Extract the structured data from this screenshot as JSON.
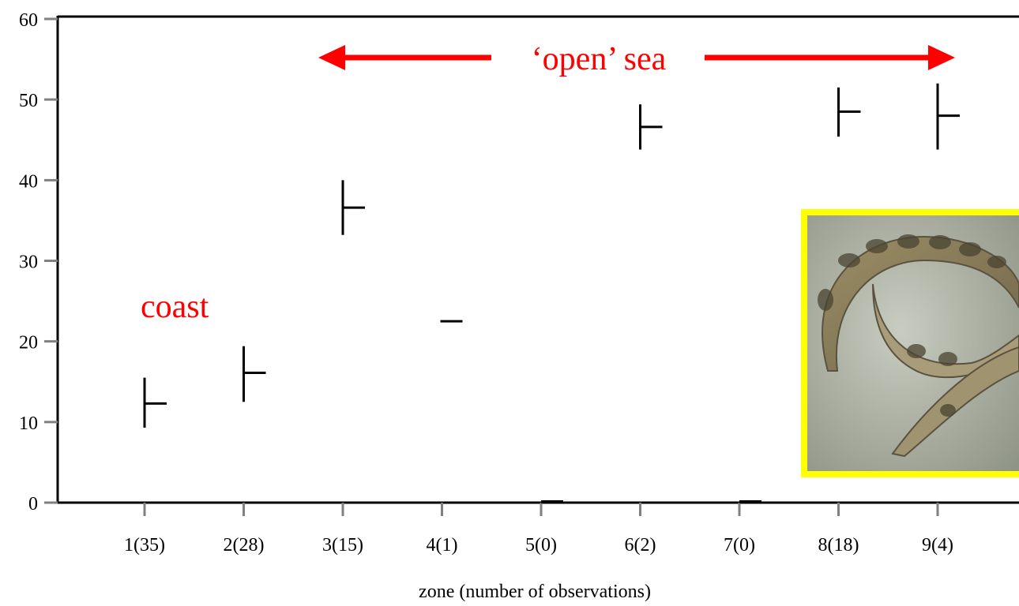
{
  "chart_data": {
    "type": "scatter",
    "marker": "range-tick",
    "title": "",
    "xlabel": "zone (number of observations)",
    "ylabel": "",
    "ylim": [
      0,
      60
    ],
    "yticks": [
      0,
      10,
      20,
      30,
      40,
      50,
      60
    ],
    "categories": [
      "1(35)",
      "2(28)",
      "3(15)",
      "4(1)",
      "5(0)",
      "6(2)",
      "7(0)",
      "8(18)",
      "9(4)"
    ],
    "series": [
      {
        "points": [
          {
            "category": "1(35)",
            "mean": 12.3,
            "low": 9.3,
            "high": 15.5
          },
          {
            "category": "2(28)",
            "mean": 16.1,
            "low": 12.5,
            "high": 19.4
          },
          {
            "category": "3(15)",
            "mean": 36.6,
            "low": 33.2,
            "high": 40.0
          },
          {
            "category": "4(1)",
            "mean": 22.5,
            "low": 22.5,
            "high": 22.5
          },
          {
            "category": "5(0)",
            "mean": 0,
            "low": 0,
            "high": 0
          },
          {
            "category": "6(2)",
            "mean": 46.6,
            "low": 43.8,
            "high": 49.4
          },
          {
            "category": "7(0)",
            "mean": 0,
            "low": 0,
            "high": 0
          },
          {
            "category": "8(18)",
            "mean": 48.5,
            "low": 45.4,
            "high": 51.5
          },
          {
            "category": "9(4)",
            "mean": 48.0,
            "low": 43.8,
            "high": 52.0
          }
        ]
      }
    ],
    "annotations": {
      "open_sea": "‘open’ sea",
      "coast": "coast",
      "color": "#ff0000"
    },
    "inset_image": {
      "subject": "nematode-worms-photo",
      "border_color": "#ffff00"
    }
  }
}
